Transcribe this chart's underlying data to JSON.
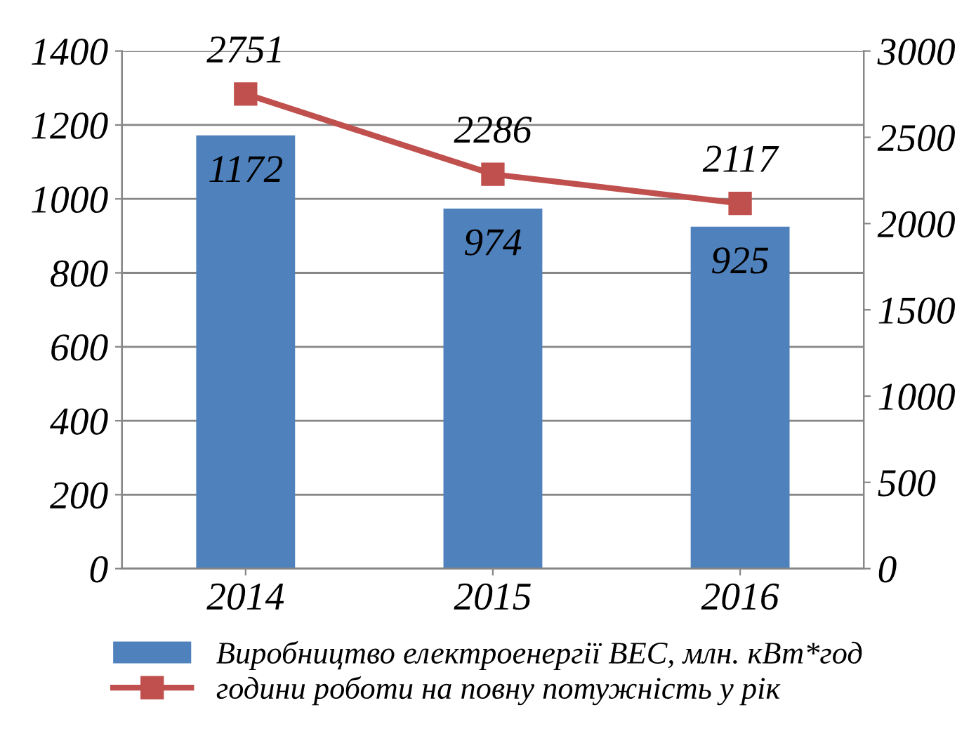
{
  "chart_data": {
    "type": "bar",
    "categories": [
      "2014",
      "2015",
      "2016"
    ],
    "series": [
      {
        "name": "Виробництво електроенергії ВЕС, млн. кВт*год",
        "color": "#4f81bd",
        "values": [
          1172,
          974,
          925
        ]
      },
      {
        "name": "години роботи на повну потужність у рік",
        "type": "line",
        "axis": "y2",
        "color": "#c0504d",
        "values": [
          2751,
          2286,
          2117
        ]
      }
    ],
    "ylim": [
      0,
      1400
    ],
    "yticks": [
      0,
      200,
      400,
      600,
      800,
      1000,
      1200,
      1400
    ],
    "y2lim": [
      0,
      3000
    ],
    "y2ticks": [
      0,
      500,
      1000,
      1500,
      2000,
      2500,
      3000
    ],
    "grid": "y",
    "legend": "bottom",
    "marker": "square",
    "line_style": "solid",
    "data_labels": true
  }
}
